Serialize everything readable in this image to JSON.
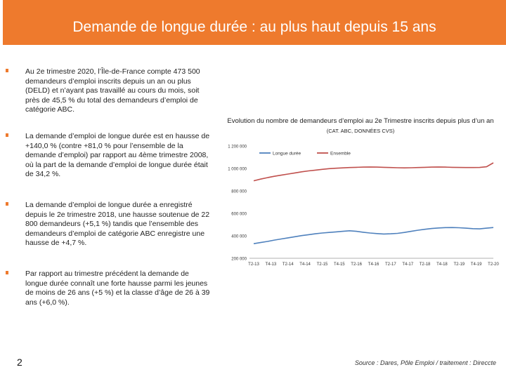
{
  "header": {
    "title": "Demande de longue durée : au plus haut depuis 15 ans"
  },
  "bullets": [
    "Au 2e trimestre 2020, l’Île-de-France compte 473 500 demandeurs d’emploi inscrits depuis un an ou plus (DELD) et n’ayant pas travaillé au cours du mois, soit près de 45,5 % du total des demandeurs d’emploi de catégorie ABC.",
    "La demande d’emploi de longue durée est en hausse de +140,0 % (contre +81,0 % pour l’ensemble de la demande d’emploi) par rapport au 4ème trimestre 2008, où la part de la demande d’emploi de longue durée était de 34,2 %.",
    "La demande d’emploi de longue durée a enregistré depuis le 2e trimestre 2018, une hausse soutenue de 22 800 demandeurs (+5,1 %) tandis que l’ensemble des demandeurs d’emploi de catégorie ABC enregistre une hausse de +4,7 %.",
    "Par rapport au trimestre précédent la demande de longue durée connaît une forte hausse parmi les jeunes de moins de 26 ans (+5 %) et la classe d’âge de 26 à 39 ans (+6,0 %)."
  ],
  "page_number": "2",
  "source": "Source : Dares, Pôle Emploi / traitement : Direccte",
  "chart_data": {
    "type": "line",
    "title": "Evolution du nombre de demandeurs d’emploi au 2e Trimestre inscrits depuis plus d’un an",
    "subtitle": "(CAT. ABC, DONNÉES CVS)",
    "x_ticks": [
      "T2-13",
      "T4-13",
      "T2-14",
      "T4-14",
      "T2-15",
      "T4-15",
      "T2-16",
      "T4-16",
      "T2-17",
      "T4-17",
      "T2-18",
      "T4-18",
      "T2-19",
      "T4-19",
      "T2-20"
    ],
    "ylim": [
      200000,
      1200000
    ],
    "y_ticks": [
      200000,
      400000,
      600000,
      800000,
      1000000,
      1200000
    ],
    "y_tick_labels": [
      "200 000",
      "400 000",
      "600 000",
      "800 000",
      "1 000 000",
      "1 200 000"
    ],
    "legend_position": "top-left",
    "grid": false,
    "series": [
      {
        "name": "Longue durée",
        "color": "#4f81bd",
        "values": [
          330000,
          340000,
          350000,
          362000,
          372000,
          382000,
          392000,
          402000,
          410000,
          418000,
          425000,
          430000,
          435000,
          440000,
          445000,
          440000,
          432000,
          425000,
          420000,
          416000,
          418000,
          422000,
          430000,
          440000,
          450000,
          458000,
          465000,
          470000,
          473000,
          474000,
          472000,
          468000,
          464000,
          462000,
          468000,
          473500
        ]
      },
      {
        "name": "Ensemble",
        "color": "#c0504d",
        "values": [
          890000,
          905000,
          918000,
          930000,
          940000,
          950000,
          960000,
          970000,
          978000,
          985000,
          992000,
          998000,
          1002000,
          1005000,
          1008000,
          1010000,
          1012000,
          1013000,
          1012000,
          1010000,
          1008000,
          1006000,
          1005000,
          1006000,
          1008000,
          1010000,
          1012000,
          1013000,
          1012000,
          1010000,
          1009000,
          1008000,
          1008000,
          1009000,
          1015000,
          1050000
        ]
      }
    ]
  }
}
